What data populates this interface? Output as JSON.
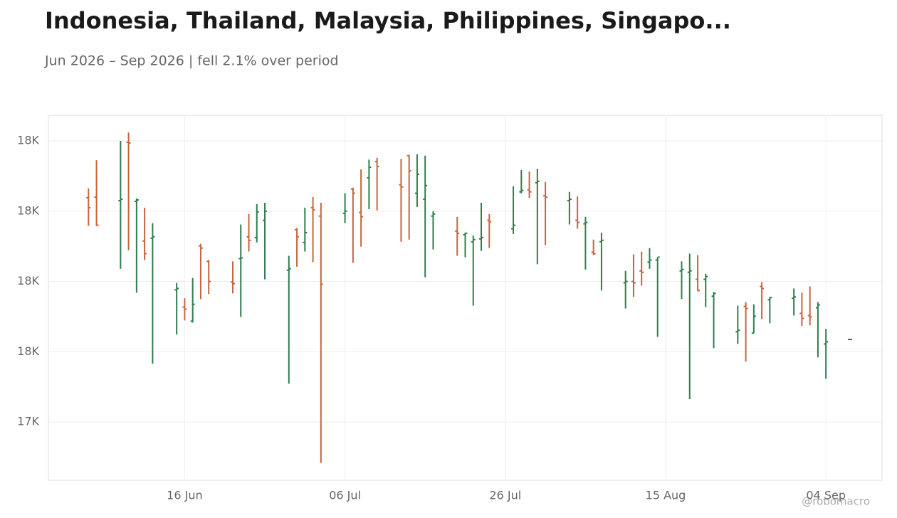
{
  "chart_data": {
    "type": "ohlc",
    "title": "Indonesia, Thailand, Malaysia, Philippines, Singapo...",
    "subtitle": "Jun 2026 – Sep 2026 | fell 2.1% over period",
    "watermark": "@robomacro",
    "up_color": "#2e7d4f",
    "down_color": "#c8643c",
    "grid": true,
    "xlim": [
      "2026-05-30",
      "2026-09-11"
    ],
    "xticks": [
      {
        "value": "2026-06-16",
        "label": "16 Jun"
      },
      {
        "value": "2026-07-06",
        "label": "06 Jul"
      },
      {
        "value": "2026-07-26",
        "label": "26 Jul"
      },
      {
        "value": "2026-08-15",
        "label": "15 Aug"
      },
      {
        "value": "2026-09-04",
        "label": "04 Sep"
      }
    ],
    "ylim": [
      17234,
      18273
    ],
    "yticks": [
      {
        "value": 17400,
        "label": "17K"
      },
      {
        "value": 17600,
        "label": "18K"
      },
      {
        "value": 17800,
        "label": "18K"
      },
      {
        "value": 18000,
        "label": "18K"
      },
      {
        "value": 18200,
        "label": "18K"
      }
    ],
    "x": [
      "2026-06-04",
      "2026-06-05",
      "2026-06-08",
      "2026-06-09",
      "2026-06-10",
      "2026-06-11",
      "2026-06-12",
      "2026-06-15",
      "2026-06-16",
      "2026-06-17",
      "2026-06-18",
      "2026-06-19",
      "2026-06-22",
      "2026-06-23",
      "2026-06-24",
      "2026-06-25",
      "2026-06-26",
      "2026-06-29",
      "2026-06-30",
      "2026-07-01",
      "2026-07-02",
      "2026-07-03",
      "2026-07-06",
      "2026-07-07",
      "2026-07-08",
      "2026-07-09",
      "2026-07-10",
      "2026-07-13",
      "2026-07-14",
      "2026-07-15",
      "2026-07-16",
      "2026-07-17",
      "2026-07-20",
      "2026-07-21",
      "2026-07-22",
      "2026-07-23",
      "2026-07-24",
      "2026-07-27",
      "2026-07-28",
      "2026-07-29",
      "2026-07-30",
      "2026-07-31",
      "2026-08-03",
      "2026-08-04",
      "2026-08-05",
      "2026-08-06",
      "2026-08-07",
      "2026-08-10",
      "2026-08-11",
      "2026-08-12",
      "2026-08-13",
      "2026-08-14",
      "2026-08-17",
      "2026-08-18",
      "2026-08-19",
      "2026-08-20",
      "2026-08-21",
      "2026-08-24",
      "2026-08-25",
      "2026-08-26",
      "2026-08-27",
      "2026-08-28",
      "2026-08-31",
      "2026-09-01",
      "2026-09-02",
      "2026-09-03",
      "2026-09-04",
      "2026-09-07"
    ],
    "high": [
      18065,
      18145,
      18200,
      18224,
      18036,
      18010,
      17966,
      17796,
      17752,
      17810,
      17907,
      17861,
      17857,
      17962,
      17992,
      18020,
      18024,
      17873,
      17952,
      18010,
      18040,
      18024,
      18051,
      18067,
      18119,
      18147,
      18152,
      18149,
      18160,
      18162,
      18158,
      18000,
      17984,
      17939,
      17931,
      18024,
      17992,
      18071,
      18117,
      18113,
      18121,
      18083,
      18055,
      18042,
      17984,
      17919,
      17939,
      17830,
      17877,
      17885,
      17895,
      17869,
      17857,
      17879,
      17875,
      17822,
      17770,
      17731,
      17741,
      17735,
      17798,
      17756,
      17780,
      17768,
      17786,
      17741,
      17665,
      17636
    ],
    "low": [
      17958,
      17958,
      17836,
      17889,
      17768,
      17861,
      17566,
      17649,
      17689,
      17683,
      17750,
      17764,
      17766,
      17699,
      17885,
      17911,
      17806,
      17509,
      17842,
      17885,
      17855,
      17283,
      17966,
      17853,
      17899,
      18006,
      18002,
      17913,
      17919,
      18012,
      17812,
      17891,
      17873,
      17869,
      17731,
      17887,
      17895,
      17935,
      18051,
      18038,
      17849,
      17903,
      17962,
      17950,
      17834,
      17875,
      17774,
      17723,
      17756,
      17788,
      17836,
      17642,
      17750,
      17465,
      17772,
      17727,
      17610,
      17622,
      17572,
      17653,
      17693,
      17681,
      17703,
      17673,
      17675,
      17584,
      17523,
      17634
    ],
    "open": [
      18038,
      18040,
      18030,
      18196,
      18028,
      17915,
      17923,
      17776,
      17727,
      17687,
      17901,
      17857,
      17798,
      17865,
      17927,
      17925,
      17974,
      17832,
      17947,
      17911,
      18010,
      17986,
      17994,
      18063,
      17996,
      18095,
      18141,
      18075,
      18158,
      18051,
      18034,
      17986,
      17943,
      17933,
      17913,
      17921,
      17974,
      17950,
      18055,
      18061,
      18081,
      18044,
      18030,
      17974,
      17964,
      17883,
      17913,
      17796,
      17800,
      17830,
      17855,
      17861,
      17830,
      17826,
      17806,
      17806,
      17758,
      17657,
      17729,
      17653,
      17786,
      17748,
      17752,
      17709,
      17703,
      17725,
      17622,
      17635
    ],
    "close": [
      18010,
      17960,
      18034,
      18194,
      18032,
      17879,
      17927,
      17780,
      17721,
      17735,
      17895,
      17800,
      17794,
      17867,
      17917,
      17998,
      18000,
      17836,
      17927,
      17939,
      18004,
      17792,
      18000,
      18051,
      17984,
      18125,
      18127,
      18069,
      18115,
      18105,
      18073,
      17992,
      17937,
      17937,
      17919,
      17925,
      17970,
      17960,
      18059,
      18055,
      18085,
      18040,
      18034,
      17968,
      17968,
      17879,
      17917,
      17800,
      17796,
      17826,
      17861,
      17869,
      17834,
      17830,
      17774,
      17814,
      17766,
      17661,
      17723,
      17701,
      17780,
      17754,
      17756,
      17695,
      17699,
      17733,
      17628,
      17635
    ]
  }
}
